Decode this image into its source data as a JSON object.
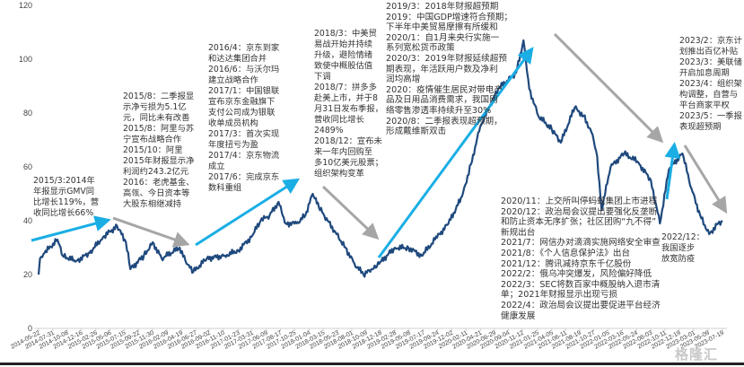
{
  "chart_data": {
    "type": "line",
    "title": "",
    "xlabel": "",
    "ylabel": "",
    "ylim": [
      0,
      120
    ],
    "yticks": [
      0,
      20,
      40,
      60,
      80,
      100,
      120
    ],
    "grid": false,
    "line_color": "#1f497d",
    "x_tick_labels": [
      "2014-05-22",
      "2014-07-31",
      "2014-10-08",
      "2014-12-16",
      "2015-02-26",
      "2015-05-06",
      "2015-07-15",
      "2015-09-22",
      "2015-11-30",
      "2016-02-09",
      "2016-04-19",
      "2016-06-27",
      "2016-09-02",
      "2016-11-10",
      "2017-01-23",
      "2017-03-31",
      "2017-06-09",
      "2017-08-17",
      "2017-10-25",
      "2018-01-04",
      "2018-03-15",
      "2018-05-23",
      "2018-08-01",
      "2018-10-09",
      "2018-12-18",
      "2019-02-28",
      "2019-05-08",
      "2019-07-17",
      "2019-09-24",
      "2019-12-02",
      "2020-02-11",
      "2020-04-21",
      "2020-06-29",
      "2020-09-04",
      "2020-11-12",
      "2021-01-25",
      "2021-04-05",
      "2021-06-11",
      "2021-08-19",
      "2021-10-27",
      "2022-01-05",
      "2022-03-16",
      "2022-05-24",
      "2022-08-03",
      "2022-10-11",
      "2022-12-19",
      "2023-03-01",
      "2023-05-09",
      "2023-07-19"
    ],
    "series": [
      {
        "x": [
          "2014-05-22",
          "2014-05-29",
          "2014-06-20",
          "2014-08-22",
          "2014-09-17",
          "2014-11-22",
          "2015-01-26",
          "2015-04-03",
          "2015-06-10",
          "2015-07-23",
          "2015-08-14",
          "2015-10-19",
          "2015-12-01",
          "2016-01-14",
          "2016-04-11",
          "2016-05-15",
          "2016-06-17",
          "2016-08-22",
          "2016-11-18",
          "2017-01-23",
          "2017-03-28",
          "2017-05-12",
          "2017-06-25",
          "2017-08-08",
          "2017-09-12",
          "2017-11-04",
          "2017-12-17",
          "2018-01-22",
          "2018-02-21",
          "2018-04-05",
          "2018-05-19",
          "2018-07-01",
          "2018-08-14",
          "2018-09-27",
          "2018-11-10",
          "2018-12-02",
          "2018-12-24",
          "2019-02-28",
          "2019-05-05",
          "2019-07-09",
          "2019-09-12",
          "2019-11-17",
          "2020-01-22",
          "2020-03-06",
          "2020-04-20",
          "2020-06-03",
          "2020-07-17",
          "2020-08-30",
          "2020-10-13",
          "2020-11-18",
          "2020-12-16",
          "2021-01-29",
          "2021-04-05",
          "2021-05-19",
          "2021-07-26",
          "2021-09-08",
          "2021-10-22",
          "2021-11-13",
          "2021-12-05",
          "2022-01-18",
          "2022-03-25",
          "2022-05-29",
          "2022-08-03",
          "2022-09-16",
          "2022-10-30",
          "2023-01-04",
          "2023-02-17",
          "2023-04-01",
          "2023-05-15",
          "2023-06-28",
          "2023-07-19"
        ],
        "y": [
          20,
          26,
          28,
          33,
          27,
          25,
          28,
          34,
          38,
          32,
          22,
          27,
          32,
          26,
          30,
          24,
          21,
          26,
          27,
          29,
          34,
          40,
          42,
          47,
          39,
          39,
          42,
          50,
          45,
          40,
          35,
          30,
          24,
          20,
          22,
          23,
          25,
          30,
          30,
          27,
          33,
          39,
          49,
          61,
          75,
          82,
          89,
          92,
          95,
          107,
          89,
          79,
          74,
          69,
          82,
          79,
          72,
          64,
          44,
          60,
          65,
          62,
          55,
          39,
          59,
          65,
          52,
          42,
          35,
          39,
          40
        ]
      }
    ],
    "trend_arrow_colors": {
      "up": "#1aaee5",
      "down": "#a6a6a6"
    },
    "annotations": [
      {
        "id": "a2015_3",
        "lines": [
          "2015/3:2014年",
          "年报显示GMV同",
          "比增长119%，营",
          "收同比增长66%"
        ]
      },
      {
        "id": "a2015_8",
        "lines": [
          "2015/8：二季报显",
          "示净亏损为5.1亿",
          "元，同比未有改善",
          "2015/8：阿里与苏",
          "宁宣布战略合作",
          "2015/10：阿里",
          "2015年财报显示净",
          "利润约243.2亿元",
          "2016：老虎基金、",
          "高瓴、今日资本等",
          "大股东相继减持"
        ]
      },
      {
        "id": "a2016_4",
        "lines": [
          "2016/4：京东到家",
          "和达达集团合并",
          "2016/6：与沃尔玛",
          "建立战略合作",
          "2017/1：中国银联",
          "宣布京东金融旗下",
          "支付公司成为银联",
          "收单成员机构",
          "2017/3：首次实现",
          "年度扭亏为盈",
          "2017/4：京东物流",
          "成立",
          "2017/6：完成京东",
          "数科重组"
        ]
      },
      {
        "id": "a2018_3",
        "lines": [
          "2018/3：中美贸",
          "易战开始并持续",
          "升级，避险情绪",
          "致使中概股估值",
          "下调",
          "2018/7：拼多多",
          "赴美上市，并于8",
          "月31日发布季报，",
          "营收同比增长",
          "2489%",
          "2018/12：宣布未",
          "来一年内回购至",
          "多10亿美元股票；",
          "组织架构变革"
        ]
      },
      {
        "id": "a2019_3",
        "lines": [
          "2019/3：2018年财报超预期",
          "2019：中国GDP增速符合预期；",
          "下半年中美贸易摩擦有所缓和",
          "2020/1：自1月来央行实施一",
          "系列宽松货币政策",
          "2020/3：2019年财报延续超预",
          "期表现，年活跃用户数及净利",
          "润均高增",
          "2020：疫情催生居民对带电产",
          "品及日用品消费需求，我国网",
          "络零售渗透率持续升至30%",
          "2020/8：二季报表现超预期，",
          "形成戴维斯双击"
        ]
      },
      {
        "id": "a2020_11",
        "lines": [
          "2020/11：上交所叫停蚂蚁集团上市进程",
          "2020/12：政治局会议提出要强化反垄断",
          "和防止资本无序扩张；社区团购“九不得”",
          "新规出台",
          "2021/7：网信办对滴滴实施网络安全审查",
          "2021/8：《个人信息保护法》出台",
          "2021/12：腾讯减持京东千亿股份",
          "2022/2：俄乌冲突爆发，风险偏好降低",
          "2022/3：SEC将数百家中概股纳入退市清",
          "单；2021年财报显示出现亏损",
          "2022/4：政治局会议提出要促进平台经济",
          "健康发展"
        ]
      },
      {
        "id": "a2022_12",
        "lines": [
          "2022/12：",
          "我国逐步",
          "放宽防疫"
        ]
      },
      {
        "id": "a2023_2",
        "lines": [
          "2023/2：京东计",
          "划推出百亿补贴",
          "2023/3：美联储",
          "开启加息周期",
          "2023/4：组织架",
          "构调整，自营与",
          "平台商家平权",
          "2023/5：一季报",
          "表现超预期"
        ]
      }
    ],
    "watermark": "格隆汇"
  }
}
